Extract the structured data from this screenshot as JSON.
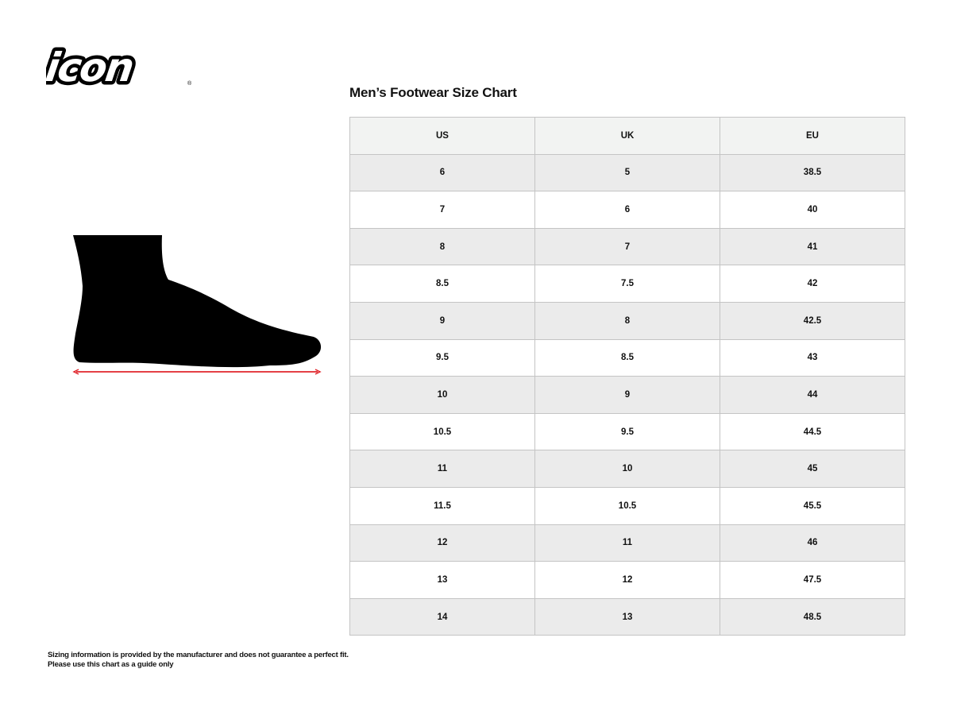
{
  "brand": {
    "logo_text": "icon",
    "registered_mark": "®"
  },
  "title": "Men’s Footwear Size Chart",
  "table": {
    "headers": [
      "US",
      "UK",
      "EU"
    ],
    "rows": [
      [
        "6",
        "5",
        "38.5"
      ],
      [
        "7",
        "6",
        "40"
      ],
      [
        "8",
        "7",
        "41"
      ],
      [
        "8.5",
        "7.5",
        "42"
      ],
      [
        "9",
        "8",
        "42.5"
      ],
      [
        "9.5",
        "8.5",
        "43"
      ],
      [
        "10",
        "9",
        "44"
      ],
      [
        "10.5",
        "9.5",
        "44.5"
      ],
      [
        "11",
        "10",
        "45"
      ],
      [
        "11.5",
        "10.5",
        "45.5"
      ],
      [
        "12",
        "11",
        "46"
      ],
      [
        "13",
        "12",
        "47.5"
      ],
      [
        "14",
        "13",
        "48.5"
      ]
    ]
  },
  "illustration": {
    "icon": "foot-silhouette-icon",
    "measure_arrow_color": "#e0252b"
  },
  "note": {
    "line1": "Sizing information is provided by the manufacturer and does not guarantee a perfect fit.",
    "line2": "Please use this chart as a guide only"
  }
}
